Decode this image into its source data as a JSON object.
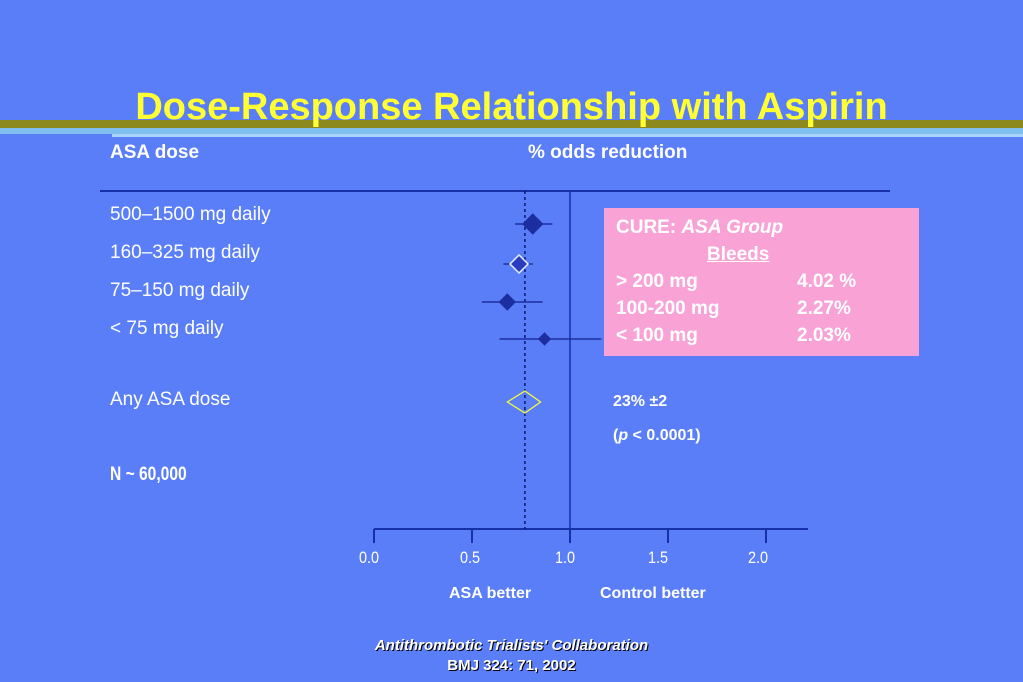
{
  "title": "Dose-Response Relationship with Aspirin",
  "headers": {
    "dose": "ASA dose",
    "effect": "% odds reduction"
  },
  "rows": [
    {
      "label": "500–1500 mg daily"
    },
    {
      "label": "160–325 mg daily"
    },
    {
      "label": "75–150 mg daily"
    },
    {
      "label": "< 75 mg daily"
    }
  ],
  "overall": {
    "label": "Any ASA dose",
    "result": "23% ±2",
    "p_prefix": "(",
    "p_symbol": "p",
    "p_value": " < 0.0001)"
  },
  "n_label": "N ~ 60,000",
  "cure_box": {
    "heading": "CURE:",
    "group": "ASA Group",
    "bleeds": "Bleeds",
    "rows": [
      {
        "dose": "> 200 mg",
        "value": "4.02 %"
      },
      {
        "dose": "100-200 mg",
        "value": "2.27%"
      },
      {
        "dose": "< 100 mg",
        "value": "2.03%"
      }
    ]
  },
  "axis": {
    "ticks": [
      "0.0",
      "0.5",
      "1.0",
      "1.5",
      "2.0"
    ],
    "left_label": "ASA better",
    "right_label": "Control better"
  },
  "source": {
    "line1": "Antithrombotic Trialists' Collaboration",
    "line2": "BMJ 324: 71, 2002"
  },
  "colors": {
    "background": "#5a7ef8",
    "title": "#ffff33",
    "marker": "#1d2fa0",
    "summary": "#ffff33",
    "cure_box": "#f8a2d6"
  },
  "chart_data": {
    "type": "forest",
    "xlim": [
      0.0,
      2.0
    ],
    "x_ticks": [
      0.0,
      0.5,
      1.0,
      1.5,
      2.0
    ],
    "reference_line": 1.0,
    "summary_line": 0.77,
    "estimates": [
      {
        "category": "500–1500 mg daily",
        "odds_ratio": 0.81,
        "ci": [
          0.72,
          0.91
        ]
      },
      {
        "category": "160–325 mg daily",
        "odds_ratio": 0.74,
        "ci": [
          0.66,
          0.81
        ]
      },
      {
        "category": "75–150 mg daily",
        "odds_ratio": 0.68,
        "ci": [
          0.55,
          0.86
        ]
      },
      {
        "category": "< 75 mg daily",
        "odds_ratio": 0.87,
        "ci": [
          0.64,
          1.16
        ]
      }
    ],
    "summary": {
      "category": "Any ASA dose",
      "odds_ratio": 0.77,
      "ci": [
        0.68,
        0.85
      ]
    }
  }
}
